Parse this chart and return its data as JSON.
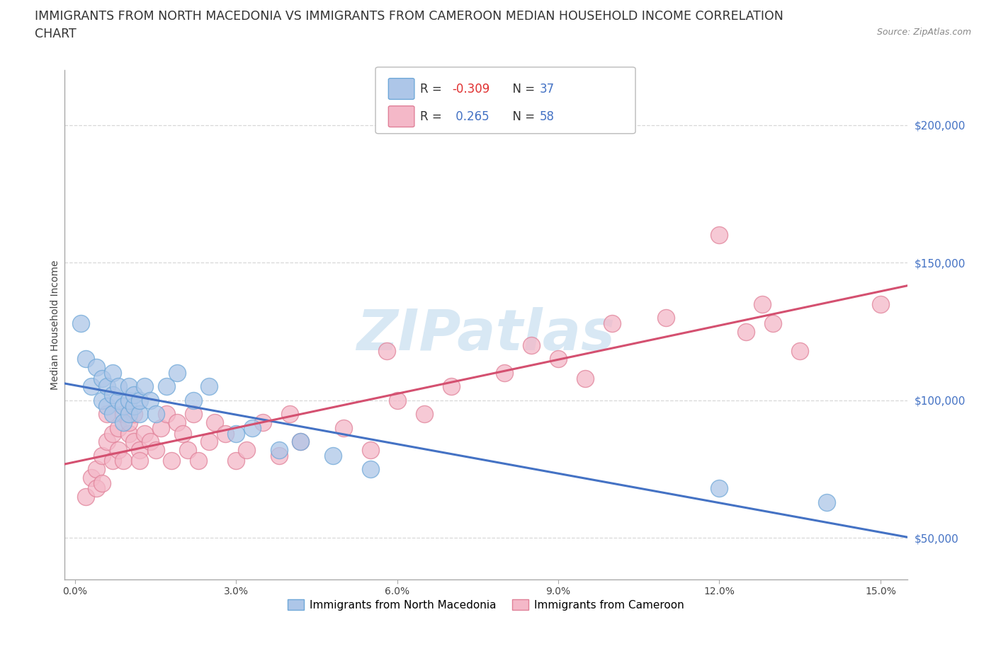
{
  "title_line1": "IMMIGRANTS FROM NORTH MACEDONIA VS IMMIGRANTS FROM CAMEROON MEDIAN HOUSEHOLD INCOME CORRELATION",
  "title_line2": "CHART",
  "source_text": "Source: ZipAtlas.com",
  "ylabel": "Median Household Income",
  "xlim": [
    -0.002,
    0.155
  ],
  "ylim": [
    35000,
    220000
  ],
  "yticks": [
    50000,
    100000,
    150000,
    200000
  ],
  "ytick_labels": [
    "$50,000",
    "$100,000",
    "$150,000",
    "$200,000"
  ],
  "xticks": [
    0.0,
    0.03,
    0.06,
    0.09,
    0.12,
    0.15
  ],
  "xtick_labels": [
    "0.0%",
    "3.0%",
    "6.0%",
    "9.0%",
    "12.0%",
    "15.0%"
  ],
  "north_macedonia_R": -0.309,
  "north_macedonia_N": 37,
  "cameroon_R": 0.265,
  "cameroon_N": 58,
  "north_macedonia_color": "#adc6e8",
  "north_macedonia_edge_color": "#6fa8d8",
  "north_macedonia_line_color": "#4472c4",
  "cameroon_color": "#f4b8c8",
  "cameroon_edge_color": "#e08098",
  "cameroon_line_color": "#d45070",
  "watermark_color": "#c8dff0",
  "grid_color": "#d8d8d8",
  "background_color": "#ffffff",
  "ytick_color": "#4472c4",
  "title_color": "#333333",
  "title_fontsize": 12.5,
  "axis_label_fontsize": 10,
  "tick_fontsize": 10,
  "legend_fontsize": 12,
  "north_macedonia_x": [
    0.001,
    0.002,
    0.003,
    0.004,
    0.005,
    0.005,
    0.006,
    0.006,
    0.007,
    0.007,
    0.007,
    0.008,
    0.008,
    0.009,
    0.009,
    0.01,
    0.01,
    0.01,
    0.011,
    0.011,
    0.012,
    0.012,
    0.013,
    0.014,
    0.015,
    0.017,
    0.019,
    0.022,
    0.025,
    0.03,
    0.033,
    0.038,
    0.042,
    0.048,
    0.055,
    0.12,
    0.14
  ],
  "north_macedonia_y": [
    128000,
    115000,
    105000,
    112000,
    108000,
    100000,
    105000,
    98000,
    102000,
    110000,
    95000,
    100000,
    105000,
    92000,
    98000,
    95000,
    100000,
    105000,
    98000,
    102000,
    95000,
    100000,
    105000,
    100000,
    95000,
    105000,
    110000,
    100000,
    105000,
    88000,
    90000,
    82000,
    85000,
    80000,
    75000,
    68000,
    63000
  ],
  "cameroon_x": [
    0.002,
    0.003,
    0.004,
    0.004,
    0.005,
    0.005,
    0.006,
    0.006,
    0.007,
    0.007,
    0.008,
    0.008,
    0.009,
    0.009,
    0.01,
    0.01,
    0.011,
    0.011,
    0.012,
    0.012,
    0.013,
    0.014,
    0.015,
    0.016,
    0.017,
    0.018,
    0.019,
    0.02,
    0.021,
    0.022,
    0.023,
    0.025,
    0.026,
    0.028,
    0.03,
    0.032,
    0.035,
    0.038,
    0.04,
    0.042,
    0.05,
    0.055,
    0.058,
    0.06,
    0.065,
    0.07,
    0.08,
    0.085,
    0.09,
    0.095,
    0.1,
    0.11,
    0.12,
    0.125,
    0.128,
    0.13,
    0.135,
    0.15
  ],
  "cameroon_y": [
    65000,
    72000,
    68000,
    75000,
    70000,
    80000,
    85000,
    95000,
    88000,
    78000,
    90000,
    82000,
    78000,
    95000,
    88000,
    92000,
    85000,
    95000,
    82000,
    78000,
    88000,
    85000,
    82000,
    90000,
    95000,
    78000,
    92000,
    88000,
    82000,
    95000,
    78000,
    85000,
    92000,
    88000,
    78000,
    82000,
    92000,
    80000,
    95000,
    85000,
    90000,
    82000,
    118000,
    100000,
    95000,
    105000,
    110000,
    120000,
    115000,
    108000,
    128000,
    130000,
    160000,
    125000,
    135000,
    128000,
    118000,
    135000
  ],
  "legend_R1_label": "R = -0.309",
  "legend_R1_neg": "-0.309",
  "legend_N1": "N = 37",
  "legend_R2_label": "R =  0.265",
  "legend_R2_pos": " 0.265",
  "legend_N2": "N = 58"
}
